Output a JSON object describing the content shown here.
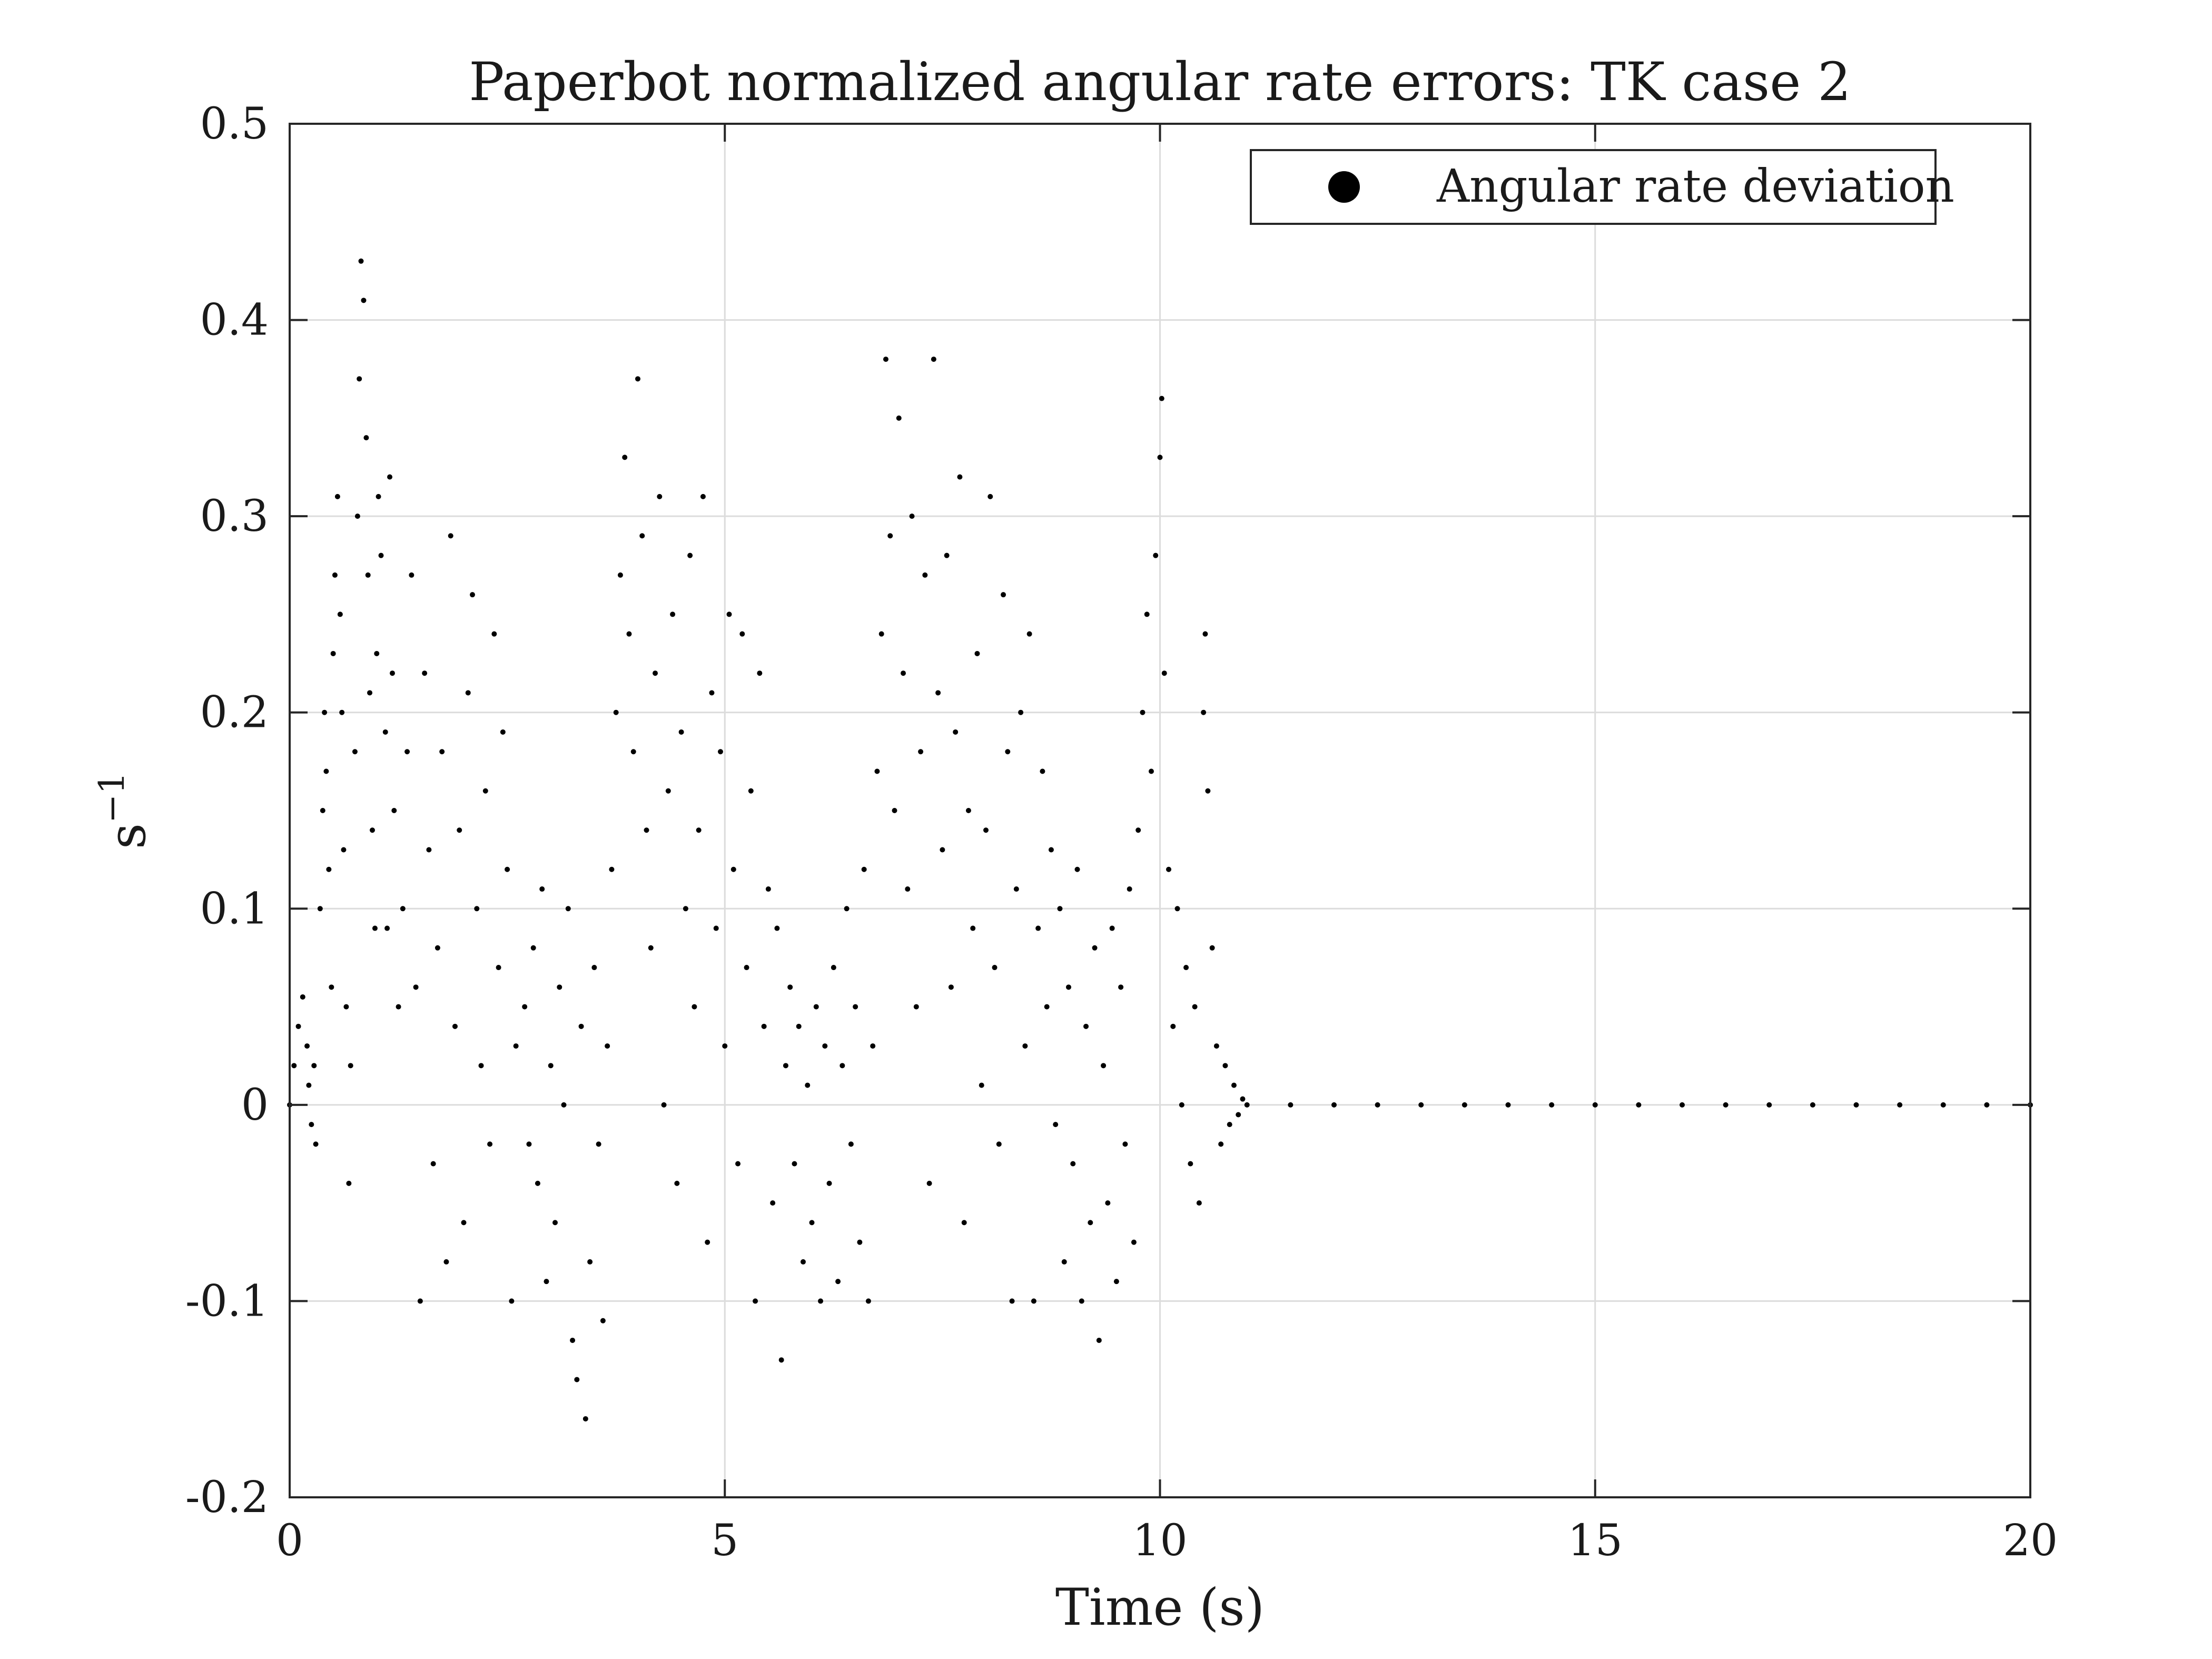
{
  "chart_data": {
    "type": "scatter",
    "title": "Paperbot normalized angular rate errors: TK case 2",
    "xlabel": "Time (s)",
    "ylabel_base": "s",
    "ylabel_exponent": "−1",
    "xlim": [
      0,
      20
    ],
    "ylim": [
      -0.2,
      0.5
    ],
    "x_ticks": [
      0,
      5,
      10,
      15,
      20
    ],
    "x_tick_labels": [
      "0",
      "5",
      "10",
      "15",
      "20"
    ],
    "y_ticks": [
      -0.2,
      -0.1,
      0,
      0.1,
      0.2,
      0.3,
      0.4,
      0.5
    ],
    "y_tick_labels": [
      "-0.2",
      "-0.1",
      "0",
      "0.1",
      "0.2",
      "0.3",
      "0.4",
      "0.5"
    ],
    "grid": true,
    "legend": {
      "position": "top-right",
      "entries": [
        "Angular rate deviation"
      ]
    },
    "series": [
      {
        "name": "Angular rate deviation",
        "color": "#000000",
        "marker": "dot",
        "points": [
          [
            0.0,
            0.0
          ],
          [
            0.05,
            0.02
          ],
          [
            0.1,
            0.04
          ],
          [
            0.15,
            0.055
          ],
          [
            0.2,
            0.03
          ],
          [
            0.22,
            0.01
          ],
          [
            0.25,
            -0.01
          ],
          [
            0.28,
            0.02
          ],
          [
            0.3,
            -0.02
          ],
          [
            0.35,
            0.1
          ],
          [
            0.38,
            0.15
          ],
          [
            0.4,
            0.2
          ],
          [
            0.42,
            0.17
          ],
          [
            0.45,
            0.12
          ],
          [
            0.48,
            0.06
          ],
          [
            0.5,
            0.23
          ],
          [
            0.52,
            0.27
          ],
          [
            0.55,
            0.31
          ],
          [
            0.58,
            0.25
          ],
          [
            0.6,
            0.2
          ],
          [
            0.62,
            0.13
          ],
          [
            0.65,
            0.05
          ],
          [
            0.68,
            -0.04
          ],
          [
            0.7,
            0.02
          ],
          [
            0.75,
            0.18
          ],
          [
            0.78,
            0.3
          ],
          [
            0.8,
            0.37
          ],
          [
            0.82,
            0.43
          ],
          [
            0.85,
            0.41
          ],
          [
            0.88,
            0.34
          ],
          [
            0.9,
            0.27
          ],
          [
            0.92,
            0.21
          ],
          [
            0.95,
            0.14
          ],
          [
            0.98,
            0.09
          ],
          [
            1.0,
            0.23
          ],
          [
            1.02,
            0.31
          ],
          [
            1.05,
            0.28
          ],
          [
            1.1,
            0.19
          ],
          [
            1.12,
            0.09
          ],
          [
            1.15,
            0.32
          ],
          [
            1.18,
            0.22
          ],
          [
            1.2,
            0.15
          ],
          [
            1.25,
            0.05
          ],
          [
            1.3,
            0.1
          ],
          [
            1.35,
            0.18
          ],
          [
            1.4,
            0.27
          ],
          [
            1.45,
            0.06
          ],
          [
            1.5,
            -0.1
          ],
          [
            1.55,
            0.22
          ],
          [
            1.6,
            0.13
          ],
          [
            1.65,
            -0.03
          ],
          [
            1.7,
            0.08
          ],
          [
            1.75,
            0.18
          ],
          [
            1.8,
            -0.08
          ],
          [
            1.85,
            0.29
          ],
          [
            1.9,
            0.04
          ],
          [
            1.95,
            0.14
          ],
          [
            2.0,
            -0.06
          ],
          [
            2.05,
            0.21
          ],
          [
            2.1,
            0.26
          ],
          [
            2.15,
            0.1
          ],
          [
            2.2,
            0.02
          ],
          [
            2.25,
            0.16
          ],
          [
            2.3,
            -0.02
          ],
          [
            2.35,
            0.24
          ],
          [
            2.4,
            0.07
          ],
          [
            2.45,
            0.19
          ],
          [
            2.5,
            0.12
          ],
          [
            2.55,
            -0.1
          ],
          [
            2.6,
            0.03
          ],
          [
            2.7,
            0.05
          ],
          [
            2.75,
            -0.02
          ],
          [
            2.8,
            0.08
          ],
          [
            2.85,
            -0.04
          ],
          [
            2.9,
            0.11
          ],
          [
            2.95,
            -0.09
          ],
          [
            3.0,
            0.02
          ],
          [
            3.05,
            -0.06
          ],
          [
            3.1,
            0.06
          ],
          [
            3.15,
            0.0
          ],
          [
            3.2,
            0.1
          ],
          [
            3.25,
            -0.12
          ],
          [
            3.3,
            -0.14
          ],
          [
            3.35,
            0.04
          ],
          [
            3.4,
            -0.16
          ],
          [
            3.45,
            -0.08
          ],
          [
            3.5,
            0.07
          ],
          [
            3.55,
            -0.02
          ],
          [
            3.6,
            -0.11
          ],
          [
            3.65,
            0.03
          ],
          [
            3.7,
            0.12
          ],
          [
            3.75,
            0.2
          ],
          [
            3.8,
            0.27
          ],
          [
            3.85,
            0.33
          ],
          [
            3.9,
            0.24
          ],
          [
            3.95,
            0.18
          ],
          [
            4.0,
            0.37
          ],
          [
            4.05,
            0.29
          ],
          [
            4.1,
            0.14
          ],
          [
            4.15,
            0.08
          ],
          [
            4.2,
            0.22
          ],
          [
            4.25,
            0.31
          ],
          [
            4.3,
            0.0
          ],
          [
            4.35,
            0.16
          ],
          [
            4.4,
            0.25
          ],
          [
            4.45,
            -0.04
          ],
          [
            4.5,
            0.19
          ],
          [
            4.55,
            0.1
          ],
          [
            4.6,
            0.28
          ],
          [
            4.65,
            0.05
          ],
          [
            4.7,
            0.14
          ],
          [
            4.75,
            0.31
          ],
          [
            4.8,
            -0.07
          ],
          [
            4.85,
            0.21
          ],
          [
            4.9,
            0.09
          ],
          [
            4.95,
            0.18
          ],
          [
            5.0,
            0.03
          ],
          [
            5.05,
            0.25
          ],
          [
            5.1,
            0.12
          ],
          [
            5.15,
            -0.03
          ],
          [
            5.2,
            0.24
          ],
          [
            5.25,
            0.07
          ],
          [
            5.3,
            0.16
          ],
          [
            5.35,
            -0.1
          ],
          [
            5.4,
            0.22
          ],
          [
            5.45,
            0.04
          ],
          [
            5.5,
            0.11
          ],
          [
            5.55,
            -0.05
          ],
          [
            5.6,
            0.09
          ],
          [
            5.65,
            -0.13
          ],
          [
            5.7,
            0.02
          ],
          [
            5.75,
            0.06
          ],
          [
            5.8,
            -0.03
          ],
          [
            5.85,
            0.04
          ],
          [
            5.9,
            -0.08
          ],
          [
            5.95,
            0.01
          ],
          [
            6.0,
            -0.06
          ],
          [
            6.05,
            0.05
          ],
          [
            6.1,
            -0.1
          ],
          [
            6.15,
            0.03
          ],
          [
            6.2,
            -0.04
          ],
          [
            6.25,
            0.07
          ],
          [
            6.3,
            -0.09
          ],
          [
            6.35,
            0.02
          ],
          [
            6.4,
            0.1
          ],
          [
            6.45,
            -0.02
          ],
          [
            6.5,
            0.05
          ],
          [
            6.55,
            -0.07
          ],
          [
            6.6,
            0.12
          ],
          [
            6.65,
            -0.1
          ],
          [
            6.7,
            0.03
          ],
          [
            6.75,
            0.17
          ],
          [
            6.8,
            0.24
          ],
          [
            6.85,
            0.38
          ],
          [
            6.9,
            0.29
          ],
          [
            6.95,
            0.15
          ],
          [
            7.0,
            0.35
          ],
          [
            7.05,
            0.22
          ],
          [
            7.1,
            0.11
          ],
          [
            7.15,
            0.3
          ],
          [
            7.2,
            0.05
          ],
          [
            7.25,
            0.18
          ],
          [
            7.3,
            0.27
          ],
          [
            7.35,
            -0.04
          ],
          [
            7.4,
            0.38
          ],
          [
            7.45,
            0.21
          ],
          [
            7.5,
            0.13
          ],
          [
            7.55,
            0.28
          ],
          [
            7.6,
            0.06
          ],
          [
            7.65,
            0.19
          ],
          [
            7.7,
            0.32
          ],
          [
            7.75,
            -0.06
          ],
          [
            7.8,
            0.15
          ],
          [
            7.85,
            0.09
          ],
          [
            7.9,
            0.23
          ],
          [
            7.95,
            0.01
          ],
          [
            8.0,
            0.14
          ],
          [
            8.05,
            0.31
          ],
          [
            8.1,
            0.07
          ],
          [
            8.15,
            -0.02
          ],
          [
            8.2,
            0.26
          ],
          [
            8.25,
            0.18
          ],
          [
            8.3,
            -0.1
          ],
          [
            8.35,
            0.11
          ],
          [
            8.4,
            0.2
          ],
          [
            8.45,
            0.03
          ],
          [
            8.5,
            0.24
          ],
          [
            8.55,
            -0.1
          ],
          [
            8.6,
            0.09
          ],
          [
            8.65,
            0.17
          ],
          [
            8.7,
            0.05
          ],
          [
            8.75,
            0.13
          ],
          [
            8.8,
            -0.01
          ],
          [
            8.85,
            0.1
          ],
          [
            8.9,
            -0.08
          ],
          [
            8.95,
            0.06
          ],
          [
            9.0,
            -0.03
          ],
          [
            9.05,
            0.12
          ],
          [
            9.1,
            -0.1
          ],
          [
            9.15,
            0.04
          ],
          [
            9.2,
            -0.06
          ],
          [
            9.25,
            0.08
          ],
          [
            9.3,
            -0.12
          ],
          [
            9.35,
            0.02
          ],
          [
            9.4,
            -0.05
          ],
          [
            9.45,
            0.09
          ],
          [
            9.5,
            -0.09
          ],
          [
            9.55,
            0.06
          ],
          [
            9.6,
            -0.02
          ],
          [
            9.65,
            0.11
          ],
          [
            9.7,
            -0.07
          ],
          [
            9.75,
            0.14
          ],
          [
            9.8,
            0.2
          ],
          [
            9.85,
            0.25
          ],
          [
            9.9,
            0.17
          ],
          [
            9.95,
            0.28
          ],
          [
            10.0,
            0.33
          ],
          [
            10.02,
            0.36
          ],
          [
            10.05,
            0.22
          ],
          [
            10.1,
            0.12
          ],
          [
            10.15,
            0.04
          ],
          [
            10.2,
            0.1
          ],
          [
            10.25,
            0.0
          ],
          [
            10.3,
            0.07
          ],
          [
            10.35,
            -0.03
          ],
          [
            10.4,
            0.05
          ],
          [
            10.45,
            -0.05
          ],
          [
            10.5,
            0.2
          ],
          [
            10.52,
            0.24
          ],
          [
            10.55,
            0.16
          ],
          [
            10.6,
            0.08
          ],
          [
            10.65,
            0.03
          ],
          [
            10.7,
            -0.02
          ],
          [
            10.75,
            0.02
          ],
          [
            10.8,
            -0.01
          ],
          [
            10.85,
            0.01
          ],
          [
            10.9,
            -0.005
          ],
          [
            10.95,
            0.003
          ],
          [
            11.0,
            0.0
          ],
          [
            11.5,
            0.0
          ],
          [
            12.0,
            0.0
          ],
          [
            12.5,
            0.0
          ],
          [
            13.0,
            0.0
          ],
          [
            13.5,
            0.0
          ],
          [
            14.0,
            0.0
          ],
          [
            14.5,
            0.0
          ],
          [
            15.0,
            0.0
          ],
          [
            15.5,
            0.0
          ],
          [
            16.0,
            0.0
          ],
          [
            16.5,
            0.0
          ],
          [
            17.0,
            0.0
          ],
          [
            17.5,
            0.0
          ],
          [
            18.0,
            0.0
          ],
          [
            18.5,
            0.0
          ],
          [
            19.0,
            0.0
          ],
          [
            19.5,
            0.0
          ],
          [
            20.0,
            0.0
          ]
        ]
      }
    ]
  }
}
